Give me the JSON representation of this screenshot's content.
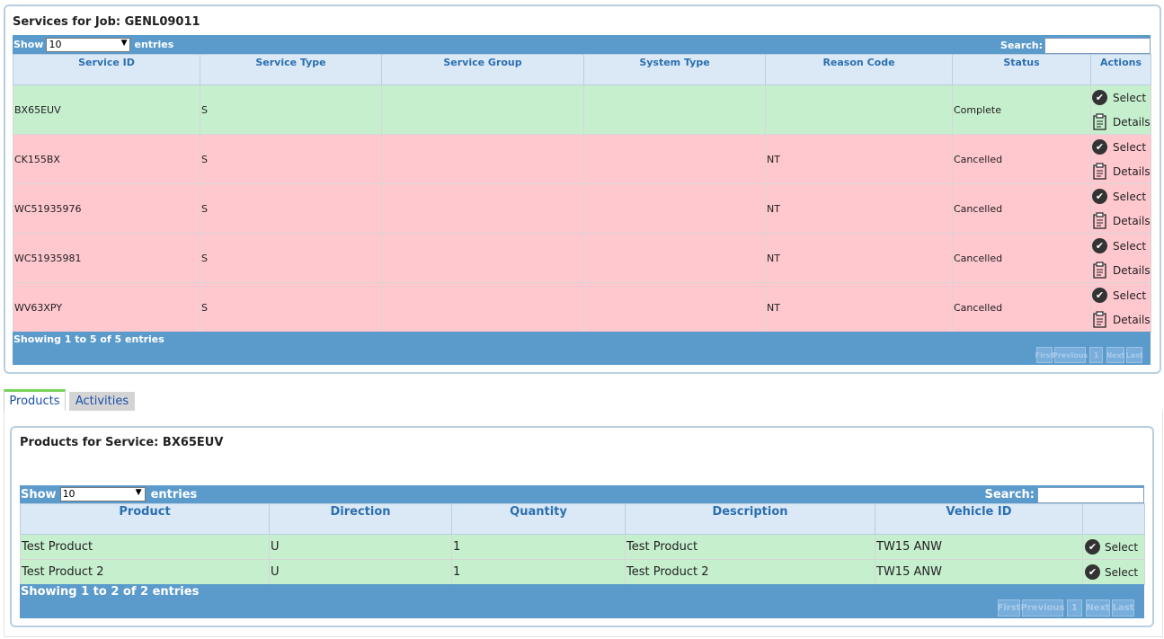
{
  "services": {
    "title": "Services for Job: GENL09011",
    "show_label": "Show",
    "entries_value": "10",
    "entries_label": "entries",
    "search_label": "Search:",
    "columns": [
      "Service ID",
      "Service Type",
      "Service Group",
      "System Type",
      "Reason Code",
      "Status",
      "Actions"
    ],
    "rows": [
      {
        "id": "BX65EUV",
        "type": "S",
        "group": "",
        "system": "",
        "reason": "",
        "status": "Complete",
        "select": "Select",
        "details": "Details"
      },
      {
        "id": "CK155BX",
        "type": "S",
        "group": "",
        "system": "",
        "reason": "NT",
        "status": "Cancelled",
        "select": "Select",
        "details": "Details"
      },
      {
        "id": "WC51935976",
        "type": "S",
        "group": "",
        "system": "",
        "reason": "NT",
        "status": "Cancelled",
        "select": "Select",
        "details": "Details"
      },
      {
        "id": "WC51935981",
        "type": "S",
        "group": "",
        "system": "",
        "reason": "NT",
        "status": "Cancelled",
        "select": "Select",
        "details": "Details"
      },
      {
        "id": "WV63XPY",
        "type": "S",
        "group": "",
        "system": "",
        "reason": "NT",
        "status": "Cancelled",
        "select": "Select",
        "details": "Details"
      }
    ],
    "info": "Showing 1 to 5 of 5 entries",
    "pager": {
      "first": "First",
      "previous": "Previous",
      "page": "1",
      "next": "Next",
      "last": "Last"
    }
  },
  "tabs": [
    {
      "label": "Products"
    },
    {
      "label": "Activities"
    }
  ],
  "products": {
    "title": "Products for Service: BX65EUV",
    "show_label": "Show",
    "entries_value": "10",
    "entries_label": "entries",
    "search_label": "Search:",
    "columns": [
      "Product",
      "Direction",
      "Quantity",
      "Description",
      "Vehicle ID",
      ""
    ],
    "rows": [
      {
        "product": "Test Product",
        "direction": "U",
        "quantity": "1",
        "description": "Test Product",
        "vehicle": "TW15 ANW",
        "select": "Select"
      },
      {
        "product": "Test Product 2",
        "direction": "U",
        "quantity": "1",
        "description": "Test Product 2",
        "vehicle": "TW15 ANW",
        "select": "Select"
      }
    ],
    "info": "Showing 1 to 2 of 2 entries",
    "pager": {
      "first": "First",
      "previous": "Previous",
      "page": "1",
      "next": "Next",
      "last": "Last"
    }
  },
  "colors": {
    "header_bar": "#5b9bcc",
    "column_header_bg": "#dbe9f7",
    "row_complete": "#c6efce",
    "row_cancelled": "#ffc7ce",
    "active_tab_accent": "#77d35a"
  }
}
